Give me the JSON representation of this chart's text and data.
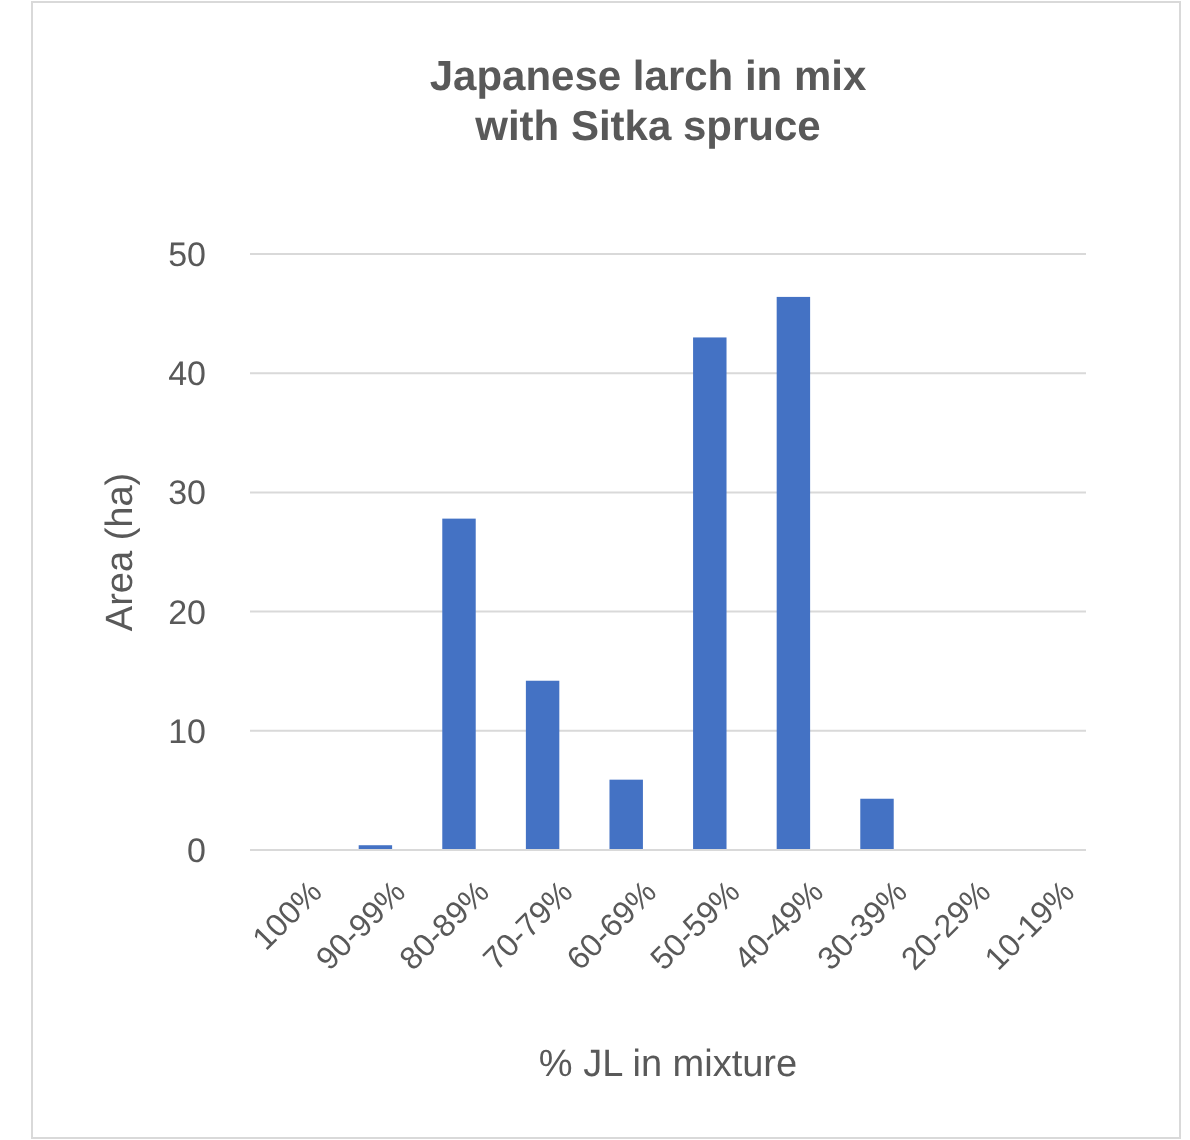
{
  "chart_data": {
    "type": "bar",
    "title": "Japanese larch in mix\nwith Sitka spruce",
    "xlabel": "% JL in mixture",
    "ylabel": "Area (ha)",
    "categories": [
      "100%",
      "90-99%",
      "80-89%",
      "70-79%",
      "60-69%",
      "50-59%",
      "40-49%",
      "30-39%",
      "20-29%",
      "10-19%"
    ],
    "values": [
      0,
      0.4,
      27.8,
      14.2,
      5.9,
      43.0,
      46.4,
      4.3,
      0,
      0
    ],
    "color": "#4472c4",
    "ylim": [
      0,
      50
    ],
    "yticks": [
      0,
      10,
      20,
      30,
      40,
      50
    ],
    "grid": "y"
  }
}
